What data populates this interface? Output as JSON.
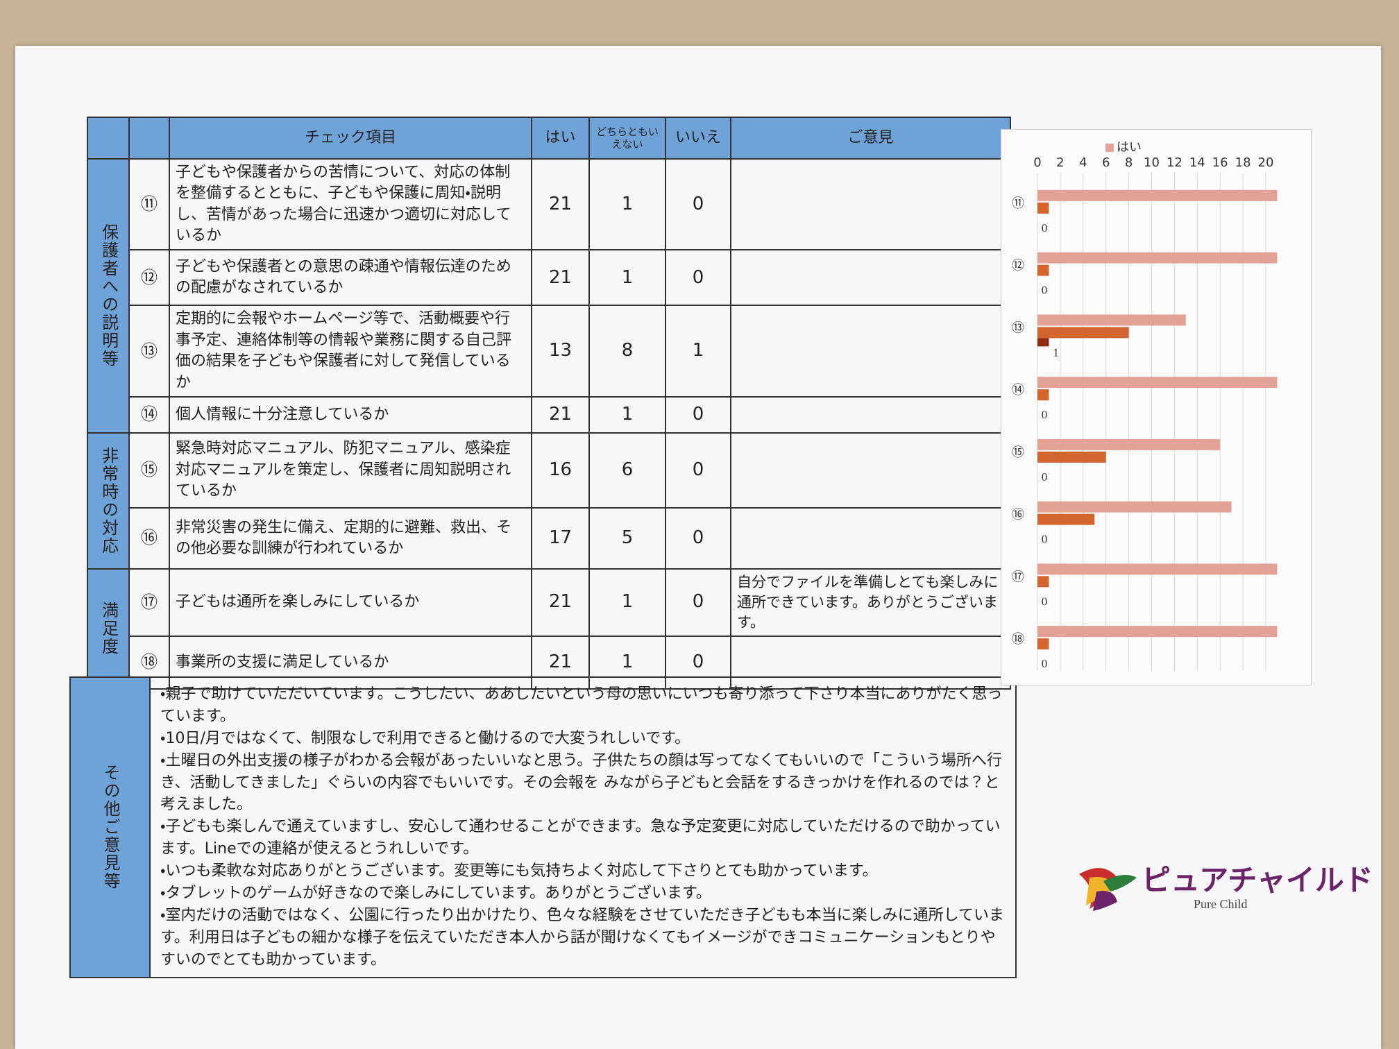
{
  "table": {
    "header": [
      "チェック項目",
      "はい",
      "どちらともいえない",
      "いいえ",
      "ご意見"
    ],
    "sections": [
      {
        "label": "保護者への説明等",
        "rows": [
          {
            "no": "⑪",
            "item": "子どもや保護者からの苦情について、対応の体制を整備するとともに、子どもや保護に周知・説明し、苦情があった場合に迅速かつ適切に対応しているか",
            "yes": 21,
            "neutral": 1,
            "no_answer": 0
          },
          {
            "no": "⑫",
            "item": "子どもや保護者との意思の疎通や情報伝達のための配慮がなされているか",
            "yes": 21,
            "neutral": 1,
            "no_answer": 0
          },
          {
            "no": "⑬",
            "item": "定期的に会報やホームページ等で、活動概要や行事予定、連絡体制等の情報や業務に関する自己評価の結果を子どもや保護者に対して発信しているか",
            "yes": 13,
            "neutral": 8,
            "no_answer": 1
          },
          {
            "no": "⑭",
            "item": "個人情報に十分注意しているか",
            "yes": 21,
            "neutral": 1,
            "no_answer": 0
          }
        ]
      },
      {
        "label": "非常時の対応",
        "rows": [
          {
            "no": "⑮",
            "item": "緊急時対応マニュアル、防犯マニュアル、感染症対応マニュアルを策定し、保護者に周知説明されているか",
            "yes": 16,
            "neutral": 6,
            "no_answer": 0
          },
          {
            "no": "⑯",
            "item": "非常災害の発生に備え、定期的に避難、救出、その他必要な訓練が行われているか",
            "yes": 17,
            "neutral": 5,
            "no_answer": 0
          }
        ]
      },
      {
        "label": "満足度",
        "rows": [
          {
            "no": "⑰",
            "item": "子どもは通所を楽しみにしているか",
            "yes": 21,
            "neutral": 1,
            "no_answer": 0,
            "opinion": "自分でファイルを準備しとても楽しみに通所できています。ありがとうございます。"
          },
          {
            "no": "⑱",
            "item": "事業所の支援に満足しているか",
            "yes": 21,
            "neutral": 1,
            "no_answer": 0
          }
        ]
      }
    ]
  },
  "comments": {
    "label": "その他ご意見等",
    "items": [
      "・親子で助けていただいています。こうしたい、ああしたいという母の思いにいつも寄り添って下さり本当にありがたく思っています。",
      "・10日/月ではなくて、制限なしで利用できると働けるので大変うれしいです。",
      "・土曜日の外出支援の様子がわかる会報があったいいなと思う。子供たちの顔は写ってなくてもいいので「こういう場所へ行き、活動してきました」ぐらいの内容でもいいです。その会報を みながら子どもと会話をするきっかけを作れるのでは？と考えました。",
      "・子どもも楽しんで通えていますし、安心して通わせることができます。急な予定変更に対応していただけるので助かっています。Lineでの連絡が使えるとうれしいです。",
      "・いつも柔軟な対応ありがとうございます。変更等にも気持ちよく対応して下さりとても助かっています。",
      "・タブレットのゲームが好きなので楽しみにしています。ありがとうございます。",
      "・室内だけの活動ではなく、公園に行ったり出かけたり、色々な経験をさせていただき子どもも本当に楽しみに通所しています。利用日は子どもの細かな様子を伝えていただき本人から話が聞けなくてもイメージができコミュニケーションもとりやすいのでとても助かっています。"
    ]
  },
  "chart": {
    "type": "bar",
    "categories": [
      "⑪",
      "⑫",
      "⑬",
      "⑭",
      "⑮",
      "⑯",
      "⑰",
      "⑱"
    ],
    "series": [
      {
        "name": "はい",
        "color": "#e3a295",
        "values": [
          21,
          21,
          13,
          21,
          16,
          17,
          21,
          21
        ]
      },
      {
        "color": "#d2642e",
        "values": [
          1,
          1,
          8,
          1,
          6,
          5,
          1,
          1
        ]
      },
      {
        "color": "#8c2c14",
        "values": [
          0,
          0,
          1,
          0,
          0,
          0,
          0,
          0
        ]
      }
    ],
    "xlim": [
      0,
      22
    ],
    "xticks": [
      0,
      2,
      4,
      6,
      8,
      10,
      12,
      14,
      16,
      18,
      20
    ],
    "grid": true
  },
  "logo": {
    "name": "ピュアチャイルド",
    "sub": "Pure Child"
  }
}
